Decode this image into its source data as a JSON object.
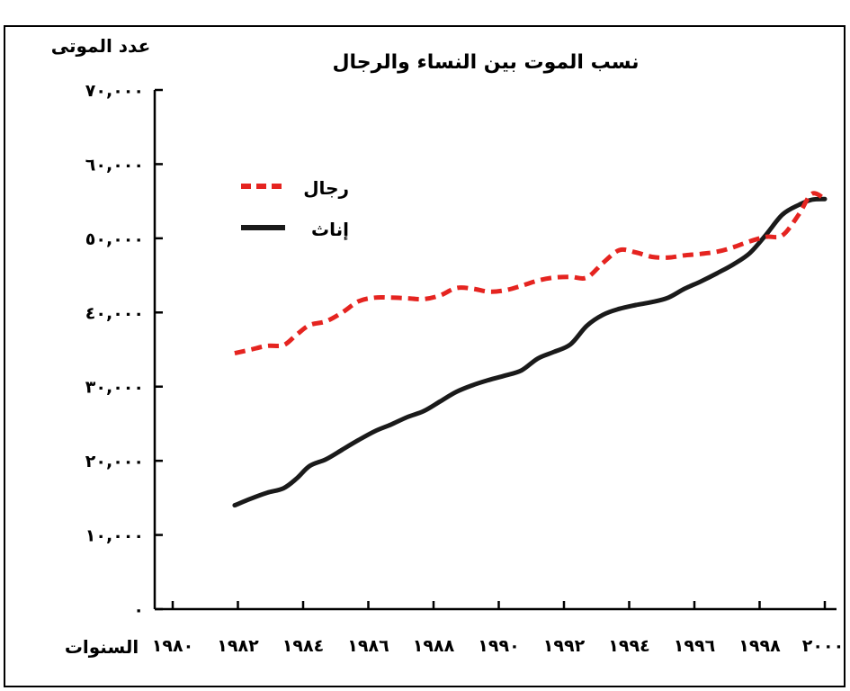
{
  "chart_data": {
    "type": "line",
    "title": "نسب الموت بين النساء والرجال",
    "xlabel": "السنوات",
    "ylabel": "عدد الموتى",
    "xlim": [
      1980,
      2000
    ],
    "ylim": [
      0,
      70000
    ],
    "x_ticks": [
      1980,
      1982,
      1984,
      1986,
      1988,
      1990,
      1992,
      1994,
      1996,
      1998,
      2000
    ],
    "x_tick_labels": [
      "١٩٨٠",
      "١٩٨٢",
      "١٩٨٤",
      "١٩٨٦",
      "١٩٨٨",
      "١٩٩٠",
      "١٩٩٢",
      "١٩٩٤",
      "١٩٩٦",
      "١٩٩٨",
      "٢٠٠٠"
    ],
    "y_ticks": [
      0,
      10000,
      20000,
      30000,
      40000,
      50000,
      60000,
      70000
    ],
    "y_tick_labels": [
      "٠",
      "١٠,٠٠٠",
      "٢٠,٠٠٠",
      "٣٠,٠٠٠",
      "٤٠,٠٠٠",
      "٥٠,٠٠٠",
      "٦٠,٠٠٠",
      "٧٠,٠٠٠"
    ],
    "legend_position": "top-left",
    "grid": false,
    "series": [
      {
        "name": "رجال",
        "color": "#e52420",
        "style": "dashed",
        "points": [
          [
            1981.9,
            34500
          ],
          [
            1982.4,
            35000
          ],
          [
            1982.9,
            35500
          ],
          [
            1983.4,
            35600
          ],
          [
            1983.8,
            37000
          ],
          [
            1984.2,
            38300
          ],
          [
            1984.7,
            38800
          ],
          [
            1985.2,
            40000
          ],
          [
            1985.7,
            41500
          ],
          [
            1986.2,
            42000
          ],
          [
            1986.7,
            42000
          ],
          [
            1987.2,
            41900
          ],
          [
            1987.7,
            41800
          ],
          [
            1988.2,
            42300
          ],
          [
            1988.7,
            43300
          ],
          [
            1989.2,
            43200
          ],
          [
            1989.7,
            42800
          ],
          [
            1990.2,
            43000
          ],
          [
            1990.7,
            43600
          ],
          [
            1991.2,
            44300
          ],
          [
            1991.7,
            44700
          ],
          [
            1992.2,
            44800
          ],
          [
            1992.7,
            44700
          ],
          [
            1993.2,
            46700
          ],
          [
            1993.7,
            48400
          ],
          [
            1994.2,
            48100
          ],
          [
            1994.7,
            47500
          ],
          [
            1995.2,
            47400
          ],
          [
            1995.7,
            47700
          ],
          [
            1996.2,
            47900
          ],
          [
            1996.7,
            48200
          ],
          [
            1997.2,
            48800
          ],
          [
            1997.7,
            49600
          ],
          [
            1998.2,
            50200
          ],
          [
            1998.7,
            50400
          ],
          [
            1999.2,
            53200
          ],
          [
            1999.6,
            56000
          ],
          [
            2000.0,
            55300
          ]
        ]
      },
      {
        "name": "إناث",
        "color": "#1a1a1a",
        "style": "solid",
        "points": [
          [
            1981.9,
            14000
          ],
          [
            1982.4,
            14900
          ],
          [
            1982.9,
            15700
          ],
          [
            1983.4,
            16300
          ],
          [
            1983.8,
            17600
          ],
          [
            1984.2,
            19300
          ],
          [
            1984.7,
            20200
          ],
          [
            1985.2,
            21500
          ],
          [
            1985.7,
            22800
          ],
          [
            1986.2,
            24000
          ],
          [
            1986.7,
            24900
          ],
          [
            1987.2,
            25900
          ],
          [
            1987.7,
            26700
          ],
          [
            1988.2,
            28000
          ],
          [
            1988.7,
            29300
          ],
          [
            1989.2,
            30200
          ],
          [
            1989.7,
            30900
          ],
          [
            1990.2,
            31500
          ],
          [
            1990.7,
            32200
          ],
          [
            1991.2,
            33800
          ],
          [
            1991.7,
            34700
          ],
          [
            1992.2,
            35700
          ],
          [
            1992.7,
            38200
          ],
          [
            1993.2,
            39700
          ],
          [
            1993.7,
            40500
          ],
          [
            1994.2,
            41000
          ],
          [
            1994.7,
            41400
          ],
          [
            1995.2,
            42000
          ],
          [
            1995.7,
            43200
          ],
          [
            1996.2,
            44200
          ],
          [
            1996.7,
            45300
          ],
          [
            1997.2,
            46500
          ],
          [
            1997.7,
            48000
          ],
          [
            1998.2,
            50500
          ],
          [
            1998.7,
            53200
          ],
          [
            1999.2,
            54500
          ],
          [
            1999.6,
            55200
          ],
          [
            2000.0,
            55300
          ]
        ]
      }
    ]
  }
}
